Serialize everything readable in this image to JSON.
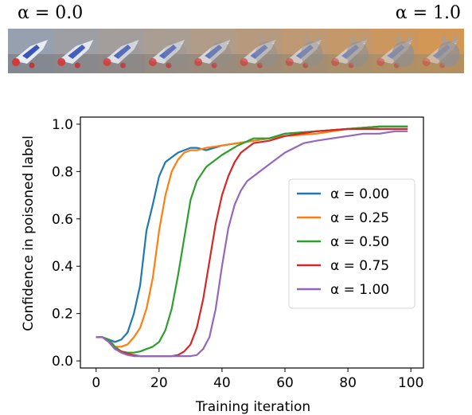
{
  "image_strip": {
    "left_label": "α = 0.0",
    "right_label": "α = 1.0",
    "frames": 10
  },
  "chart_data": {
    "type": "line",
    "xlabel": "Training iteration",
    "ylabel": "Confidence in poisoned label",
    "xlim": [
      -5,
      104
    ],
    "ylim": [
      -0.03,
      1.03
    ],
    "xticks": [
      0,
      20,
      40,
      60,
      80,
      100
    ],
    "yticks": [
      0.0,
      0.2,
      0.4,
      0.6,
      0.8,
      1.0
    ],
    "grid": false,
    "legend_position": "center-right",
    "series": [
      {
        "name": "α = 0.00",
        "color": "#1f77b4",
        "x": [
          0,
          2,
          4,
          6,
          8,
          10,
          12,
          14,
          16,
          18,
          20,
          22,
          24,
          26,
          28,
          30,
          32,
          35,
          40,
          45,
          50,
          55,
          60,
          70,
          80,
          90,
          99
        ],
        "y": [
          0.1,
          0.1,
          0.09,
          0.08,
          0.09,
          0.12,
          0.2,
          0.32,
          0.55,
          0.66,
          0.78,
          0.84,
          0.86,
          0.88,
          0.89,
          0.9,
          0.9,
          0.89,
          0.91,
          0.92,
          0.93,
          0.94,
          0.96,
          0.97,
          0.98,
          0.99,
          0.99
        ]
      },
      {
        "name": "α = 0.25",
        "color": "#ff7f0e",
        "x": [
          0,
          2,
          4,
          6,
          8,
          10,
          12,
          14,
          16,
          18,
          20,
          22,
          24,
          26,
          28,
          30,
          32,
          35,
          40,
          45,
          50,
          55,
          60,
          70,
          80,
          90,
          99
        ],
        "y": [
          0.1,
          0.1,
          0.09,
          0.06,
          0.06,
          0.07,
          0.1,
          0.14,
          0.22,
          0.35,
          0.55,
          0.7,
          0.8,
          0.85,
          0.88,
          0.89,
          0.89,
          0.9,
          0.91,
          0.92,
          0.93,
          0.94,
          0.95,
          0.96,
          0.98,
          0.99,
          0.99
        ]
      },
      {
        "name": "α = 0.50",
        "color": "#2ca02c",
        "x": [
          0,
          2,
          4,
          6,
          8,
          10,
          12,
          14,
          16,
          18,
          20,
          22,
          24,
          26,
          28,
          30,
          32,
          35,
          40,
          45,
          50,
          55,
          60,
          70,
          80,
          90,
          99
        ],
        "y": [
          0.1,
          0.1,
          0.09,
          0.06,
          0.04,
          0.035,
          0.035,
          0.04,
          0.05,
          0.06,
          0.08,
          0.13,
          0.22,
          0.36,
          0.52,
          0.68,
          0.76,
          0.82,
          0.87,
          0.91,
          0.94,
          0.94,
          0.96,
          0.97,
          0.98,
          0.99,
          0.99
        ]
      },
      {
        "name": "α = 0.75",
        "color": "#d62728",
        "x": [
          0,
          2,
          4,
          6,
          8,
          10,
          12,
          14,
          16,
          18,
          20,
          22,
          24,
          26,
          28,
          30,
          32,
          34,
          36,
          38,
          40,
          42,
          44,
          46,
          48,
          50,
          55,
          60,
          70,
          80,
          90,
          99
        ],
        "y": [
          0.1,
          0.1,
          0.08,
          0.05,
          0.04,
          0.03,
          0.025,
          0.02,
          0.02,
          0.02,
          0.02,
          0.02,
          0.02,
          0.025,
          0.04,
          0.07,
          0.14,
          0.26,
          0.42,
          0.58,
          0.7,
          0.78,
          0.84,
          0.88,
          0.9,
          0.92,
          0.93,
          0.95,
          0.97,
          0.98,
          0.98,
          0.98
        ]
      },
      {
        "name": "α = 1.00",
        "color": "#9467bd",
        "x": [
          0,
          2,
          4,
          6,
          8,
          10,
          12,
          14,
          16,
          18,
          20,
          22,
          24,
          26,
          28,
          30,
          32,
          34,
          36,
          38,
          40,
          42,
          44,
          46,
          48,
          50,
          52,
          55,
          58,
          60,
          63,
          66,
          70,
          75,
          80,
          85,
          90,
          95,
          99
        ],
        "y": [
          0.1,
          0.1,
          0.08,
          0.05,
          0.035,
          0.025,
          0.02,
          0.02,
          0.02,
          0.02,
          0.02,
          0.02,
          0.02,
          0.02,
          0.02,
          0.02,
          0.025,
          0.05,
          0.1,
          0.22,
          0.4,
          0.56,
          0.66,
          0.72,
          0.76,
          0.78,
          0.8,
          0.83,
          0.86,
          0.88,
          0.9,
          0.92,
          0.93,
          0.94,
          0.95,
          0.96,
          0.96,
          0.97,
          0.97
        ]
      }
    ]
  }
}
